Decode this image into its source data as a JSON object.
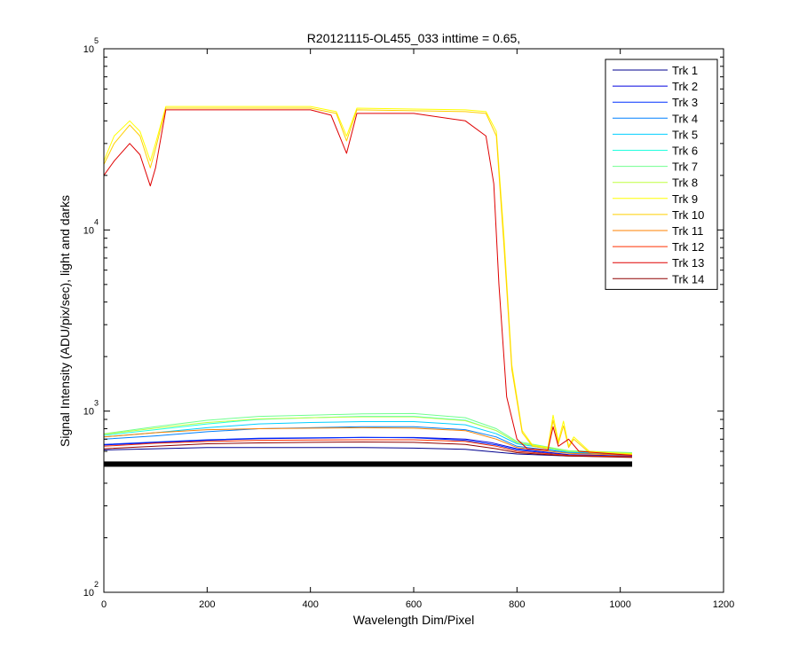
{
  "chart_data": {
    "type": "line",
    "title": "R20121115-OL455_033 inttime = 0.65,",
    "xlabel": "Wavelength Dim/Pixel",
    "ylabel": "Signal Intensity (ADU/pix/sec), light and darks",
    "x_scale": "linear",
    "y_scale": "log",
    "xlim": [
      0,
      1200
    ],
    "ylim": [
      100,
      100000
    ],
    "x_ticks": [
      "0",
      "200",
      "400",
      "600",
      "800",
      "1000",
      "1200"
    ],
    "y_ticks": [
      {
        "base": "10",
        "exp": "2",
        "value": 100
      },
      {
        "base": "10",
        "exp": "3",
        "value": 1000
      },
      {
        "base": "10",
        "exp": "4",
        "value": 10000
      },
      {
        "base": "10",
        "exp": "5",
        "value": 100000
      }
    ],
    "grid": false,
    "legend_position": "top-right",
    "series": [
      {
        "name": "Trk 1",
        "color": "#00008f",
        "points": [
          [
            0,
            610
          ],
          [
            100,
            620
          ],
          [
            200,
            630
          ],
          [
            300,
            630
          ],
          [
            400,
            630
          ],
          [
            500,
            630
          ],
          [
            600,
            625
          ],
          [
            700,
            615
          ],
          [
            800,
            580
          ],
          [
            900,
            565
          ],
          [
            1023,
            560
          ]
        ]
      },
      {
        "name": "Trk 2",
        "color": "#0000df",
        "points": [
          [
            0,
            650
          ],
          [
            100,
            670
          ],
          [
            200,
            690
          ],
          [
            300,
            705
          ],
          [
            400,
            710
          ],
          [
            500,
            715
          ],
          [
            600,
            715
          ],
          [
            700,
            700
          ],
          [
            750,
            670
          ],
          [
            800,
            620
          ],
          [
            900,
            575
          ],
          [
            1023,
            565
          ]
        ]
      },
      {
        "name": "Trk 3",
        "color": "#0030ff",
        "points": [
          [
            0,
            655
          ],
          [
            100,
            675
          ],
          [
            200,
            695
          ],
          [
            300,
            708
          ],
          [
            400,
            712
          ],
          [
            500,
            716
          ],
          [
            600,
            712
          ],
          [
            700,
            690
          ],
          [
            760,
            650
          ],
          [
            800,
            610
          ],
          [
            900,
            570
          ],
          [
            1023,
            565
          ]
        ]
      },
      {
        "name": "Trk 4",
        "color": "#0080ff",
        "points": [
          [
            0,
            700
          ],
          [
            100,
            730
          ],
          [
            200,
            770
          ],
          [
            300,
            800
          ],
          [
            400,
            810
          ],
          [
            500,
            820
          ],
          [
            600,
            820
          ],
          [
            700,
            790
          ],
          [
            760,
            720
          ],
          [
            800,
            640
          ],
          [
            900,
            590
          ],
          [
            1023,
            575
          ]
        ]
      },
      {
        "name": "Trk 5",
        "color": "#00cfff",
        "points": [
          [
            0,
            720
          ],
          [
            100,
            760
          ],
          [
            200,
            810
          ],
          [
            300,
            850
          ],
          [
            400,
            865
          ],
          [
            500,
            875
          ],
          [
            600,
            875
          ],
          [
            700,
            840
          ],
          [
            760,
            750
          ],
          [
            800,
            660
          ],
          [
            900,
            595
          ],
          [
            1023,
            580
          ]
        ]
      },
      {
        "name": "Trk 6",
        "color": "#20ffdf",
        "points": [
          [
            0,
            735
          ],
          [
            100,
            790
          ],
          [
            200,
            850
          ],
          [
            300,
            900
          ],
          [
            400,
            920
          ],
          [
            500,
            935
          ],
          [
            600,
            935
          ],
          [
            700,
            890
          ],
          [
            760,
            780
          ],
          [
            800,
            670
          ],
          [
            900,
            600
          ],
          [
            1023,
            585
          ]
        ]
      },
      {
        "name": "Trk 7",
        "color": "#70ff8f",
        "points": [
          [
            0,
            750
          ],
          [
            100,
            820
          ],
          [
            200,
            890
          ],
          [
            300,
            935
          ],
          [
            400,
            950
          ],
          [
            500,
            965
          ],
          [
            600,
            970
          ],
          [
            700,
            920
          ],
          [
            760,
            800
          ],
          [
            800,
            680
          ],
          [
            900,
            605
          ],
          [
            1023,
            590
          ]
        ]
      },
      {
        "name": "Trk 8",
        "color": "#bfff40",
        "points": [
          [
            0,
            745
          ],
          [
            100,
            805
          ],
          [
            200,
            865
          ],
          [
            300,
            905
          ],
          [
            400,
            920
          ],
          [
            500,
            930
          ],
          [
            600,
            930
          ],
          [
            700,
            885
          ],
          [
            760,
            780
          ],
          [
            800,
            670
          ],
          [
            900,
            600
          ],
          [
            1023,
            585
          ]
        ]
      },
      {
        "name": "Trk 9",
        "color": "#ffff00",
        "points": [
          [
            0,
            24000
          ],
          [
            20,
            33000
          ],
          [
            50,
            40000
          ],
          [
            70,
            35000
          ],
          [
            90,
            24000
          ],
          [
            100,
            30000
          ],
          [
            120,
            48000
          ],
          [
            200,
            48000
          ],
          [
            300,
            48000
          ],
          [
            400,
            48000
          ],
          [
            450,
            45000
          ],
          [
            470,
            33000
          ],
          [
            490,
            47000
          ],
          [
            600,
            46500
          ],
          [
            700,
            46000
          ],
          [
            740,
            45000
          ],
          [
            760,
            35000
          ],
          [
            775,
            9000
          ],
          [
            790,
            1800
          ],
          [
            810,
            780
          ],
          [
            830,
            650
          ],
          [
            860,
            630
          ],
          [
            870,
            950
          ],
          [
            880,
            680
          ],
          [
            890,
            880
          ],
          [
            900,
            640
          ],
          [
            910,
            720
          ],
          [
            940,
            600
          ],
          [
            1023,
            580
          ]
        ]
      },
      {
        "name": "Trk 10",
        "color": "#ffcf00",
        "points": [
          [
            0,
            23000
          ],
          [
            20,
            30000
          ],
          [
            50,
            38000
          ],
          [
            70,
            33000
          ],
          [
            90,
            22000
          ],
          [
            100,
            28000
          ],
          [
            120,
            47000
          ],
          [
            200,
            47000
          ],
          [
            300,
            47000
          ],
          [
            400,
            47000
          ],
          [
            450,
            44000
          ],
          [
            470,
            31000
          ],
          [
            490,
            46000
          ],
          [
            600,
            45500
          ],
          [
            700,
            45000
          ],
          [
            740,
            44000
          ],
          [
            760,
            33000
          ],
          [
            775,
            8000
          ],
          [
            790,
            1700
          ],
          [
            810,
            760
          ],
          [
            830,
            640
          ],
          [
            860,
            620
          ],
          [
            870,
            890
          ],
          [
            880,
            660
          ],
          [
            890,
            830
          ],
          [
            900,
            630
          ],
          [
            910,
            700
          ],
          [
            940,
            590
          ],
          [
            1023,
            575
          ]
        ]
      },
      {
        "name": "Trk 11",
        "color": "#ff8000",
        "points": [
          [
            0,
            720
          ],
          [
            100,
            760
          ],
          [
            200,
            790
          ],
          [
            300,
            800
          ],
          [
            400,
            805
          ],
          [
            500,
            810
          ],
          [
            600,
            805
          ],
          [
            700,
            780
          ],
          [
            760,
            700
          ],
          [
            800,
            630
          ],
          [
            900,
            585
          ],
          [
            1023,
            570
          ]
        ]
      },
      {
        "name": "Trk 12",
        "color": "#ff3000",
        "points": [
          [
            0,
            640
          ],
          [
            100,
            665
          ],
          [
            200,
            680
          ],
          [
            300,
            690
          ],
          [
            400,
            692
          ],
          [
            500,
            695
          ],
          [
            600,
            695
          ],
          [
            700,
            680
          ],
          [
            760,
            640
          ],
          [
            800,
            600
          ],
          [
            900,
            570
          ],
          [
            1023,
            560
          ]
        ]
      },
      {
        "name": "Trk 13",
        "color": "#df0000",
        "points": [
          [
            0,
            20000
          ],
          [
            20,
            24000
          ],
          [
            50,
            30000
          ],
          [
            70,
            26000
          ],
          [
            90,
            17500
          ],
          [
            100,
            22000
          ],
          [
            120,
            46000
          ],
          [
            200,
            46000
          ],
          [
            300,
            46000
          ],
          [
            400,
            46000
          ],
          [
            440,
            43000
          ],
          [
            470,
            26500
          ],
          [
            490,
            44000
          ],
          [
            600,
            44000
          ],
          [
            700,
            40000
          ],
          [
            740,
            33000
          ],
          [
            755,
            18000
          ],
          [
            765,
            5000
          ],
          [
            780,
            1200
          ],
          [
            800,
            700
          ],
          [
            820,
            620
          ],
          [
            860,
            610
          ],
          [
            870,
            820
          ],
          [
            880,
            640
          ],
          [
            900,
            700
          ],
          [
            920,
            600
          ],
          [
            1023,
            570
          ]
        ]
      },
      {
        "name": "Trk 14",
        "color": "#8f0000",
        "points": [
          [
            0,
            620
          ],
          [
            100,
            640
          ],
          [
            200,
            660
          ],
          [
            300,
            668
          ],
          [
            400,
            672
          ],
          [
            500,
            675
          ],
          [
            600,
            672
          ],
          [
            700,
            655
          ],
          [
            760,
            620
          ],
          [
            800,
            590
          ],
          [
            900,
            565
          ],
          [
            1023,
            555
          ]
        ]
      }
    ],
    "dark_series": {
      "color": "#000000",
      "level": 510,
      "x_range": [
        0,
        1023
      ]
    }
  }
}
